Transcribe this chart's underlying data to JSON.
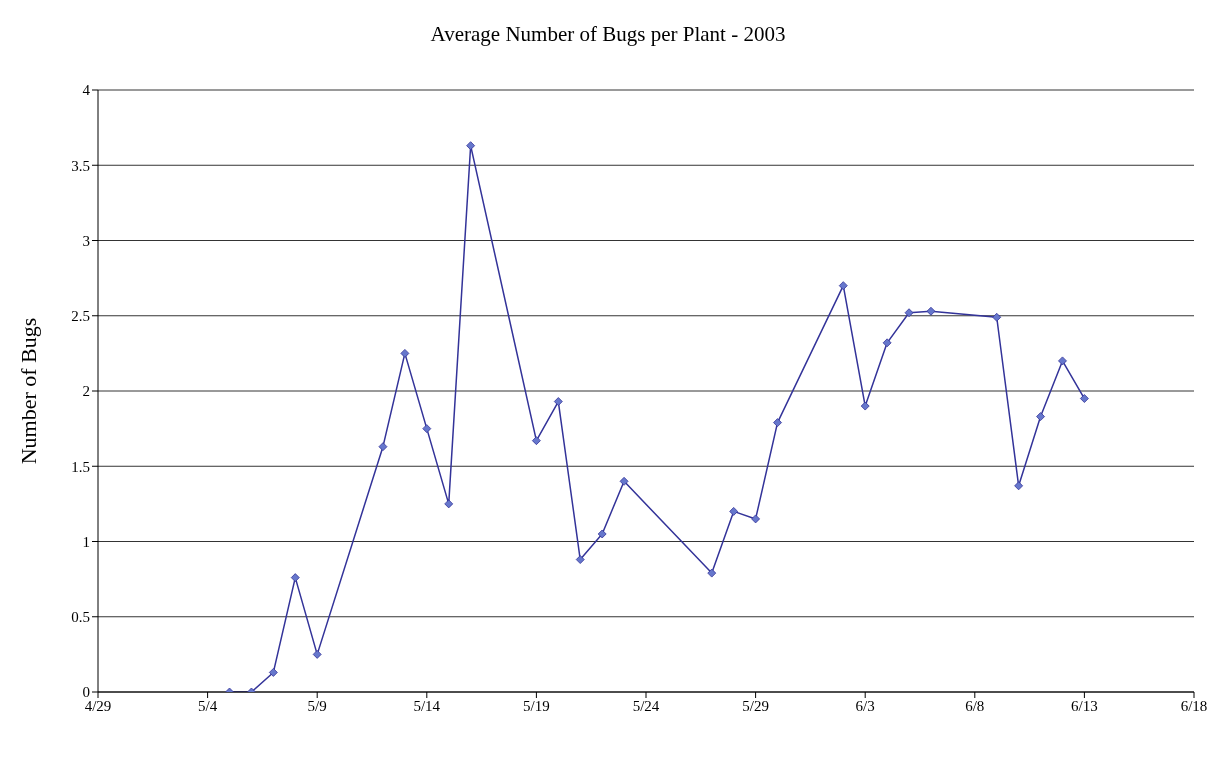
{
  "chart_data": {
    "type": "line",
    "title": "Average Number of Bugs per Plant - 2003",
    "ylabel": "Number of Bugs",
    "x": [
      "--05-05",
      "--05-06",
      "--05-07",
      "--05-08",
      "--05-09",
      "--05-12",
      "--05-13",
      "--05-14",
      "--05-15",
      "--05-16",
      "--05-19",
      "--05-20",
      "--05-21",
      "--05-22",
      "--05-23",
      "--05-27",
      "--05-28",
      "--05-29",
      "--05-30",
      "--06-02",
      "--06-03",
      "--06-04",
      "--06-05",
      "--06-06",
      "--06-09",
      "--06-10",
      "--06-11",
      "--06-12",
      "--06-13"
    ],
    "series": [
      {
        "color": "#333399",
        "values": [
          0,
          0,
          0.13,
          0.76,
          0.25,
          1.63,
          2.25,
          1.75,
          1.25,
          3.63,
          1.67,
          1.93,
          0.88,
          1.05,
          1.4,
          0.79,
          1.2,
          1.15,
          1.79,
          2.7,
          1.9,
          2.32,
          2.52,
          2.53,
          2.49,
          1.37,
          1.83,
          2.2,
          1.95
        ]
      }
    ],
    "xlim": [
      "--04-29",
      "--06-18"
    ],
    "xticks": [
      {
        "value": "--04-29",
        "label": "4/29"
      },
      {
        "value": "--05-04",
        "label": "5/4"
      },
      {
        "value": "--05-09",
        "label": "5/9"
      },
      {
        "value": "--05-14",
        "label": "5/14"
      },
      {
        "value": "--05-19",
        "label": "5/19"
      },
      {
        "value": "--05-24",
        "label": "5/24"
      },
      {
        "value": "--05-29",
        "label": "5/29"
      },
      {
        "value": "--06-03",
        "label": "6/3"
      },
      {
        "value": "--06-08",
        "label": "6/8"
      },
      {
        "value": "--06-13",
        "label": "6/13"
      },
      {
        "value": "--06-18",
        "label": "6/18"
      }
    ],
    "ylim": [
      0,
      4
    ],
    "yticks": [
      0,
      0.5,
      1,
      1.5,
      2,
      2.5,
      3,
      3.5,
      4
    ],
    "grid": "y",
    "legend": false,
    "marker": "diamond",
    "line_style": "solid"
  }
}
